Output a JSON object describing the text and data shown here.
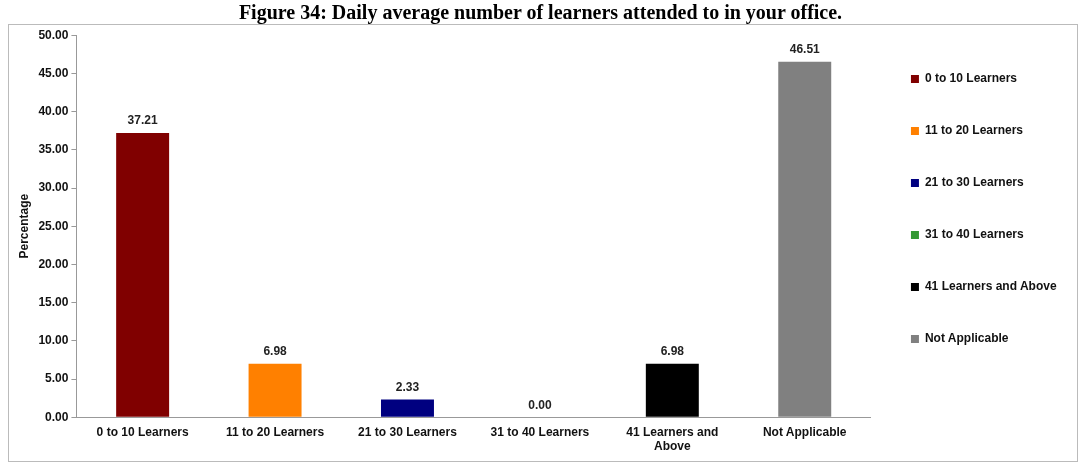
{
  "chart_data": {
    "type": "bar",
    "title": "Figure 34: Daily average number of learners attended to in your office.",
    "ylabel": "Percentage",
    "categories": [
      "0 to 10 Learners",
      "11 to 20 Learners",
      "21 to 30 Learners",
      "31 to 40 Learners",
      "41 Learners and Above",
      "Not Applicable"
    ],
    "series": [
      {
        "name": "0 to 10 Learners",
        "color": "#800000",
        "values": [
          37.21,
          null,
          null,
          null,
          null,
          null
        ],
        "value_labels": [
          "37.21",
          null,
          null,
          null,
          null,
          null
        ]
      },
      {
        "name": "11 to 20 Learners",
        "color": "#ff8000",
        "values": [
          null,
          6.98,
          null,
          null,
          null,
          null
        ],
        "value_labels": [
          null,
          "6.98",
          null,
          null,
          null,
          null
        ]
      },
      {
        "name": "21 to 30 Learners",
        "color": "#000080",
        "values": [
          null,
          null,
          2.33,
          null,
          null,
          null
        ],
        "value_labels": [
          null,
          null,
          "2.33",
          null,
          null,
          null
        ]
      },
      {
        "name": "31 to 40 Learners",
        "color": "#339933",
        "values": [
          null,
          null,
          null,
          0,
          null,
          null
        ],
        "value_labels": [
          null,
          null,
          null,
          "0.00",
          null,
          null
        ]
      },
      {
        "name": "41 Learners and Above",
        "color": "#000000",
        "values": [
          null,
          null,
          null,
          null,
          6.98,
          null
        ],
        "value_labels": [
          null,
          null,
          null,
          null,
          "6.98",
          null
        ]
      },
      {
        "name": "Not Applicable",
        "color": "#808080",
        "values": [
          null,
          null,
          null,
          null,
          null,
          46.51
        ],
        "value_labels": [
          null,
          null,
          null,
          null,
          null,
          "46.51"
        ]
      }
    ],
    "ylim": [
      0,
      50
    ],
    "yticks": [
      {
        "value": 0,
        "label": "0.00"
      },
      {
        "value": 5,
        "label": "5.00"
      },
      {
        "value": 10,
        "label": "10.00"
      },
      {
        "value": 15,
        "label": "15.00"
      },
      {
        "value": 20,
        "label": "20.00"
      },
      {
        "value": 25,
        "label": "25.00"
      },
      {
        "value": 30,
        "label": "30.00"
      },
      {
        "value": 35,
        "label": "35.00"
      },
      {
        "value": 40,
        "label": "40.00"
      },
      {
        "value": 45,
        "label": "45.00"
      },
      {
        "value": 50,
        "label": "50.00"
      }
    ],
    "grid": false,
    "legend": "right"
  }
}
